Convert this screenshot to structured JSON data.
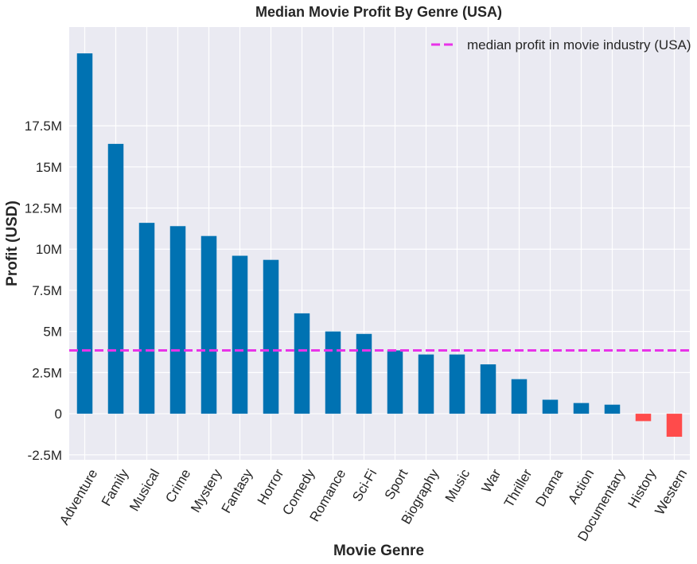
{
  "colors": {
    "background": "#eaeaf2",
    "grid": "#ffffff",
    "positive": "#0072b2",
    "negative": "#ff4b4b",
    "median_line": "#e833e8"
  },
  "chart_data": {
    "type": "bar",
    "title": "Median Movie Profit By Genre (USA)",
    "xlabel": "Movie Genre",
    "ylabel": "Profit (USD)",
    "ylim": [
      -2800000,
      23500000
    ],
    "yticks": [
      -2500000,
      0,
      2500000,
      5000000,
      7500000,
      10000000,
      12500000,
      15000000,
      17500000
    ],
    "ytick_labels": [
      "-2.5M",
      "0",
      "2.5M",
      "5M",
      "7.5M",
      "10M",
      "12.5M",
      "15M",
      "17.5M"
    ],
    "categories": [
      "Adventure",
      "Family",
      "Musical",
      "Crime",
      "Mystery",
      "Fantasy",
      "Horror",
      "Comedy",
      "Romance",
      "Sci-Fi",
      "Sport",
      "Biography",
      "Music",
      "War",
      "Thriller",
      "Drama",
      "Action",
      "Documentary",
      "History",
      "Western"
    ],
    "values": [
      21900000,
      16400000,
      11600000,
      11400000,
      10800000,
      9600000,
      9350000,
      6100000,
      5000000,
      4850000,
      3850000,
      3600000,
      3600000,
      3000000,
      2100000,
      850000,
      650000,
      550000,
      -450000,
      -1400000
    ],
    "median_line": {
      "value": 3850000,
      "label": "median profit in movie industry (USA)"
    },
    "grid": true,
    "legend_position": "top-right",
    "xtick_rotation": 60
  }
}
